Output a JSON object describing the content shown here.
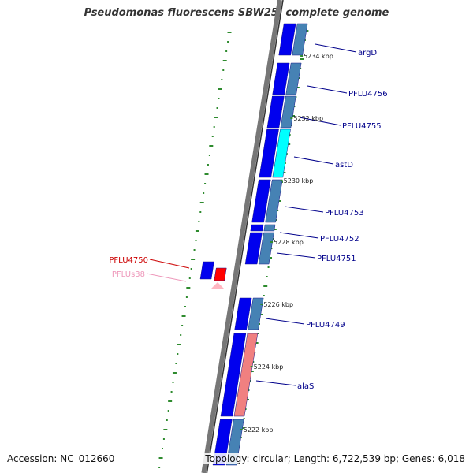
{
  "title": "Pseudomonas fluorescens SBW25, complete genome",
  "footer": {
    "accession": "Accession: NC_012660",
    "summary": "Topology: circular; Length: 6,722,539 bp; Genes: 6,018"
  },
  "colors": {
    "cds": "#0000ee",
    "cds_pair": "#4682b4",
    "astD_pair": "#00ffff",
    "alaS_pair": "#f08080",
    "ncRNA_gene": "#ff0000",
    "ncRNA": "#ffb6c1",
    "label_blue": "#00008b",
    "label_red": "#cc0000",
    "label_pink": "#ee99bb",
    "gc_dash": "#2e8b2e",
    "backbone": "#777777"
  },
  "scale": {
    "unit": "kbp",
    "ticks": [
      "5222 kbp",
      "5224 kbp",
      "5226 kbp",
      "5228 kbp",
      "5230 kbp",
      "5232 kbp",
      "5234 kbp"
    ]
  },
  "genes": [
    {
      "name": "argD",
      "type": "CDS",
      "strand": "minus"
    },
    {
      "name": "PFLU4756",
      "type": "CDS",
      "strand": "minus"
    },
    {
      "name": "PFLU4755",
      "type": "CDS",
      "strand": "minus"
    },
    {
      "name": "astD",
      "type": "CDS",
      "strand": "minus"
    },
    {
      "name": "PFLU4753",
      "type": "CDS",
      "strand": "minus"
    },
    {
      "name": "PFLU4752",
      "type": "CDS",
      "strand": "minus"
    },
    {
      "name": "PFLU4751",
      "type": "CDS",
      "strand": "minus"
    },
    {
      "name": "PFLU4750",
      "type": "ncRNA gene",
      "strand": "plus"
    },
    {
      "name": "PFLUs38",
      "type": "ncRNA",
      "strand": "plus"
    },
    {
      "name": "PFLU4749",
      "type": "CDS",
      "strand": "minus"
    },
    {
      "name": "alaS",
      "type": "CDS",
      "strand": "minus"
    }
  ]
}
